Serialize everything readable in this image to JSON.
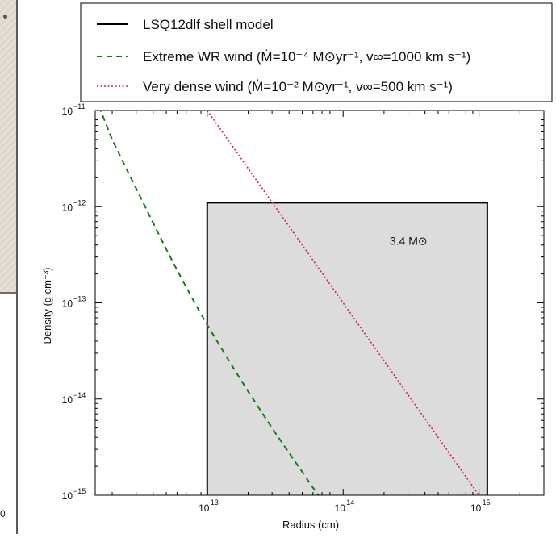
{
  "background": {
    "partial_axis_label": "0"
  },
  "chart_data": {
    "type": "line",
    "xlabel": "Radius (cm)",
    "ylabel": "Density (g cm⁻³)",
    "xscale": "log",
    "yscale": "log",
    "xlim": [
      1500000000000.0,
      3000000000000000.0
    ],
    "ylim": [
      1e-15,
      1e-11
    ],
    "x_ticks": [
      {
        "value": 10000000000000.0,
        "label": "10",
        "exp": "13"
      },
      {
        "value": 100000000000000.0,
        "label": "10",
        "exp": "14"
      },
      {
        "value": 1000000000000000.0,
        "label": "10",
        "exp": "15"
      }
    ],
    "y_ticks": [
      {
        "value": 1e-11,
        "label": "10",
        "exp": "−11"
      },
      {
        "value": 1e-12,
        "label": "10",
        "exp": "−12"
      },
      {
        "value": 1e-13,
        "label": "10",
        "exp": "−13"
      },
      {
        "value": 1e-14,
        "label": "10",
        "exp": "−14"
      },
      {
        "value": 1e-15,
        "label": "10",
        "exp": "−15"
      }
    ],
    "grid": false,
    "legend_position": "top (above plot)",
    "series": [
      {
        "name": "LSQ12dlf shell model",
        "style": "solid",
        "color": "#000000",
        "fill": "#dcdcdc",
        "shape": "box",
        "r_min": 10000000000000.0,
        "r_max": 1150000000000000.0,
        "density": 1.1e-12,
        "annotation": "3.4 M⊙",
        "annotation_at": {
          "x": 220000000000000.0,
          "y": 4e-13
        }
      },
      {
        "name": "Extreme WR wind (Ṁ=10⁻⁴ M⊙yr⁻¹,  v∞=1000 km s⁻¹)",
        "style": "dashed",
        "color": "#1a7a1a",
        "mdot_msun_yr": 0.0001,
        "vinf_km_s": 1000,
        "profile": "beta-law wind, rho = Mdot / (4 pi r^2 v(r))",
        "x": [
          1600000000000.0,
          2000000000000.0,
          2500000000000.0,
          3000000000000.0,
          4000000000000.0,
          5000000000000.0,
          6000000000000.0,
          8000000000000.0,
          10000000000000.0,
          15000000000000.0,
          20000000000000.0,
          30000000000000.0,
          40000000000000.0,
          50000000000000.0,
          60000000000000.0,
          70000000000000.0
        ],
        "y": [
          1.1e-11,
          5e-12,
          2.6e-12,
          1.55e-12,
          6.8e-13,
          3.6e-13,
          2.2e-13,
          1.03e-13,
          5.9e-14,
          2.3e-14,
          1.2e-14,
          5e-15,
          2.75e-15,
          1.75e-15,
          1.2e-15,
          8.9e-16
        ]
      },
      {
        "name": "Very dense wind (Ṁ=10⁻² M⊙yr⁻¹,  v∞=500 km s⁻¹)",
        "style": "dotted",
        "color": "#cc2a4a",
        "mdot_msun_yr": 0.01,
        "vinf_km_s": 500,
        "profile": "rho proportional to r^-2",
        "x": [
          10000000000000.0,
          1000000000000000.0
        ],
        "y": [
          1e-11,
          1e-15
        ]
      }
    ]
  }
}
